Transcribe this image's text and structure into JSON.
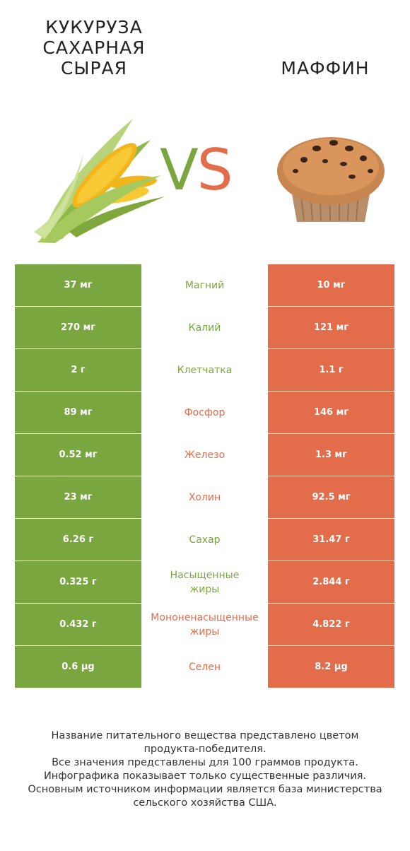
{
  "header": {
    "left_title": "КУКУРУЗА\nСАХАРНАЯ\nСЫРАЯ",
    "right_title": "МАФФИН",
    "vs_v": "V",
    "vs_s": "S"
  },
  "colors": {
    "left_color": "#7aa640",
    "right_color": "#e36c4a"
  },
  "rows": [
    {
      "left": "37 мг",
      "nutrient": "Магний",
      "right": "10 мг",
      "winner": "left"
    },
    {
      "left": "270 мг",
      "nutrient": "Калий",
      "right": "121 мг",
      "winner": "left"
    },
    {
      "left": "2 г",
      "nutrient": "Клетчатка",
      "right": "1.1 г",
      "winner": "left"
    },
    {
      "left": "89 мг",
      "nutrient": "Фосфор",
      "right": "146 мг",
      "winner": "right"
    },
    {
      "left": "0.52 мг",
      "nutrient": "Железо",
      "right": "1.3 мг",
      "winner": "right"
    },
    {
      "left": "23 мг",
      "nutrient": "Холин",
      "right": "92.5 мг",
      "winner": "right"
    },
    {
      "left": "6.26 г",
      "nutrient": "Сахар",
      "right": "31.47 г",
      "winner": "left"
    },
    {
      "left": "0.325 г",
      "nutrient": "Насыщенные\nжиры",
      "right": "2.844 г",
      "winner": "left"
    },
    {
      "left": "0.432 г",
      "nutrient": "Мононенасыщенные\nжиры",
      "right": "4.822 г",
      "winner": "right"
    },
    {
      "left": "0.6 µg",
      "nutrient": "Селен",
      "right": "8.2 µg",
      "winner": "right"
    }
  ],
  "footer": {
    "text": "Название питательного вещества представлено цветом\nпродукта-победителя.\nВсе значения представлены для 100 граммов продукта.\nИнфографика показывает только существенные различия.\nОсновным источником информации является база министерства\nсельского хозяйства США."
  }
}
